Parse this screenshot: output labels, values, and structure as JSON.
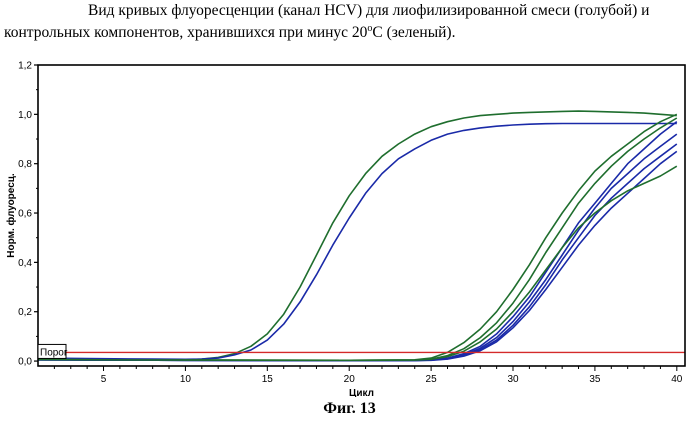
{
  "caption": {
    "line1": "Вид кривых флуоресценции (канал HCV) для лиофилизированной смеси (голубой) и",
    "line2_prefix": "контрольных компонентов, хранившихся при минус 20",
    "line2_sup": "о",
    "line2_suffix": "С (зеленый)."
  },
  "figure_label": "Фиг. 13",
  "colors": {
    "blue": "#1a2aa8",
    "green": "#1f6e2e",
    "threshold": "#d42a2a",
    "axis": "#000000"
  },
  "chart_data": {
    "type": "line",
    "xlabel": "Цикл",
    "ylabel": "Норм. флуоресц.",
    "xlim": [
      1,
      40.5
    ],
    "ylim": [
      -0.02,
      1.2
    ],
    "xticks": [
      5,
      10,
      15,
      20,
      25,
      30,
      35,
      40
    ],
    "yticks": [
      "0,0",
      "0,2",
      "0,4",
      "0,6",
      "0,8",
      "1,0",
      "1,2"
    ],
    "ytick_values": [
      0,
      0.2,
      0.4,
      0.6,
      0.8,
      1.0,
      1.2
    ],
    "grid": false,
    "threshold": {
      "label": "Порог",
      "value": 0.035
    },
    "series": [
      {
        "color": "green",
        "x": [
          1,
          4,
          8,
          10,
          11,
          12,
          13,
          14,
          15,
          16,
          17,
          18,
          19,
          20,
          21,
          22,
          23,
          24,
          25,
          26,
          27,
          28,
          29,
          30,
          31,
          32,
          33,
          34,
          35,
          36,
          37,
          38,
          39,
          40
        ],
        "y": [
          0.01,
          0.008,
          0.006,
          0.005,
          0.008,
          0.015,
          0.03,
          0.06,
          0.11,
          0.19,
          0.3,
          0.43,
          0.56,
          0.67,
          0.76,
          0.83,
          0.88,
          0.92,
          0.95,
          0.97,
          0.985,
          0.995,
          1.0,
          1.005,
          1.008,
          1.01,
          1.012,
          1.013,
          1.012,
          1.01,
          1.008,
          1.005,
          1.0,
          0.995
        ]
      },
      {
        "color": "blue",
        "x": [
          1,
          4,
          8,
          10,
          11,
          12,
          13,
          14,
          15,
          16,
          17,
          18,
          19,
          20,
          21,
          22,
          23,
          24,
          25,
          26,
          27,
          28,
          29,
          30,
          31,
          32,
          33,
          34,
          35,
          36,
          37,
          38,
          39,
          40
        ],
        "y": [
          0.012,
          0.01,
          0.008,
          0.007,
          0.008,
          0.012,
          0.025,
          0.045,
          0.085,
          0.15,
          0.24,
          0.35,
          0.47,
          0.58,
          0.68,
          0.76,
          0.82,
          0.86,
          0.895,
          0.92,
          0.935,
          0.945,
          0.952,
          0.957,
          0.96,
          0.962,
          0.963,
          0.963,
          0.963,
          0.963,
          0.963,
          0.963,
          0.963,
          0.963
        ]
      },
      {
        "color": "green",
        "x": [
          1,
          10,
          20,
          24,
          25,
          26,
          27,
          28,
          29,
          30,
          31,
          32,
          33,
          34,
          35,
          36,
          37,
          38,
          39,
          40
        ],
        "y": [
          0.006,
          0.004,
          0.003,
          0.005,
          0.012,
          0.035,
          0.075,
          0.13,
          0.2,
          0.29,
          0.39,
          0.5,
          0.6,
          0.69,
          0.77,
          0.83,
          0.88,
          0.93,
          0.97,
          1.0
        ]
      },
      {
        "color": "green",
        "x": [
          1,
          10,
          20,
          24,
          25,
          26,
          27,
          28,
          29,
          30,
          31,
          32,
          33,
          34,
          35,
          36,
          37,
          38,
          39,
          40
        ],
        "y": [
          0.006,
          0.004,
          0.003,
          0.004,
          0.008,
          0.022,
          0.05,
          0.095,
          0.155,
          0.235,
          0.33,
          0.44,
          0.54,
          0.64,
          0.72,
          0.79,
          0.85,
          0.9,
          0.945,
          0.985
        ]
      },
      {
        "color": "blue",
        "x": [
          1,
          10,
          20,
          24,
          25,
          26,
          27,
          28,
          29,
          30,
          31,
          32,
          33,
          34,
          35,
          36,
          37,
          38,
          39,
          40
        ],
        "y": [
          0.005,
          0.003,
          0.002,
          0.003,
          0.005,
          0.012,
          0.03,
          0.06,
          0.11,
          0.18,
          0.26,
          0.36,
          0.46,
          0.56,
          0.64,
          0.72,
          0.8,
          0.86,
          0.92,
          0.97
        ]
      },
      {
        "color": "blue",
        "x": [
          1,
          10,
          20,
          24,
          25,
          26,
          27,
          28,
          29,
          30,
          31,
          32,
          33,
          34,
          35,
          36,
          37,
          38,
          39,
          40
        ],
        "y": [
          0.005,
          0.003,
          0.002,
          0.003,
          0.004,
          0.01,
          0.025,
          0.052,
          0.095,
          0.16,
          0.24,
          0.33,
          0.43,
          0.53,
          0.62,
          0.7,
          0.76,
          0.82,
          0.87,
          0.92
        ]
      },
      {
        "color": "blue",
        "x": [
          1,
          10,
          20,
          24,
          25,
          26,
          27,
          28,
          29,
          30,
          31,
          32,
          33,
          34,
          35,
          36,
          37,
          38,
          39,
          40
        ],
        "y": [
          0.005,
          0.003,
          0.002,
          0.002,
          0.004,
          0.009,
          0.022,
          0.046,
          0.085,
          0.145,
          0.22,
          0.31,
          0.41,
          0.5,
          0.59,
          0.66,
          0.72,
          0.78,
          0.83,
          0.88
        ]
      },
      {
        "color": "blue",
        "x": [
          1,
          10,
          20,
          24,
          25,
          26,
          27,
          28,
          29,
          30,
          31,
          32,
          33,
          34,
          35,
          36,
          37,
          38,
          39,
          40
        ],
        "y": [
          0.005,
          0.003,
          0.002,
          0.002,
          0.003,
          0.008,
          0.02,
          0.042,
          0.078,
          0.135,
          0.205,
          0.29,
          0.38,
          0.47,
          0.55,
          0.62,
          0.68,
          0.74,
          0.8,
          0.85
        ]
      },
      {
        "color": "green",
        "x": [
          1,
          10,
          20,
          24,
          25,
          26,
          27,
          28,
          29,
          30,
          31,
          32,
          33,
          34,
          35,
          36,
          37,
          38,
          39,
          40
        ],
        "y": [
          0.006,
          0.004,
          0.003,
          0.004,
          0.007,
          0.018,
          0.04,
          0.078,
          0.13,
          0.2,
          0.28,
          0.37,
          0.46,
          0.54,
          0.6,
          0.65,
          0.69,
          0.72,
          0.75,
          0.79
        ]
      }
    ]
  }
}
